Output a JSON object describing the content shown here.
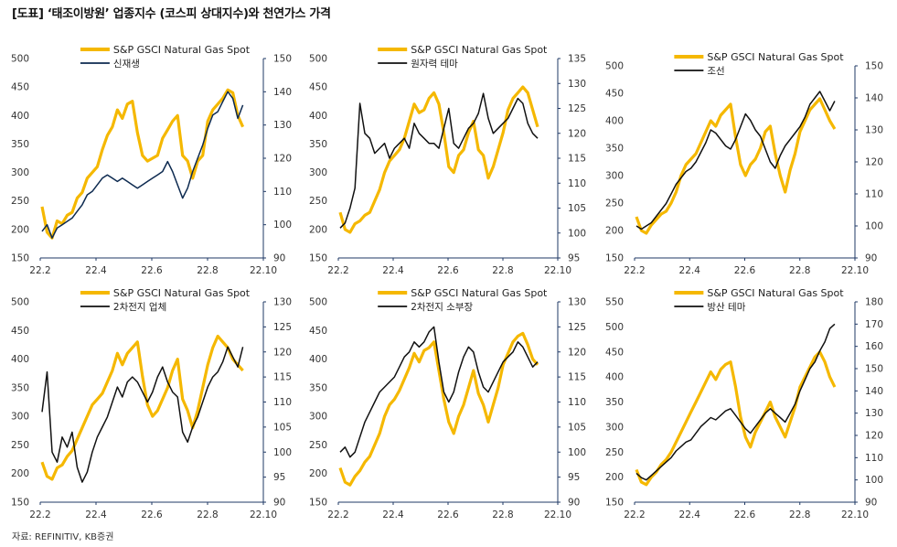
{
  "title": "[도표] ‘태조이방원’ 업종지수 (코스피 상대지수)와 천연가스 가격",
  "source": "자료: REFINITIV, KB증권",
  "colors": {
    "gas": "#F5B800",
    "theme": "#111111",
    "theme_alt": "#0D2A50",
    "axis": "#1F3864"
  },
  "x_ticks": [
    "22.2",
    "22.4",
    "22.6",
    "22.8",
    "22.10"
  ],
  "chart_data": [
    {
      "type": "line",
      "x_range": [
        "22.2",
        "22.10"
      ],
      "left_ticks": [
        "150",
        "200",
        "250",
        "300",
        "350",
        "400",
        "450",
        "500"
      ],
      "right_ticks": [
        "90",
        "100",
        "110",
        "120",
        "130",
        "140",
        "150"
      ],
      "ylim_left": [
        150,
        500
      ],
      "ylim_right": [
        90,
        150
      ],
      "legend_position": "top",
      "series": [
        {
          "name": "S&P GSCI Natural Gas Spot",
          "axis": "left",
          "values": [
            240,
            195,
            185,
            215,
            210,
            225,
            230,
            255,
            265,
            290,
            300,
            310,
            340,
            365,
            380,
            410,
            395,
            420,
            425,
            370,
            330,
            320,
            325,
            330,
            360,
            375,
            390,
            400,
            330,
            320,
            290,
            320,
            330,
            390,
            410,
            420,
            430,
            445,
            440,
            400,
            380
          ]
        },
        {
          "name": "신재생",
          "axis": "right",
          "values": [
            98,
            100,
            96,
            99,
            100,
            101,
            102,
            104,
            106,
            109,
            110,
            112,
            114,
            115,
            114,
            113,
            114,
            113,
            112,
            111,
            112,
            113,
            114,
            115,
            116,
            119,
            116,
            112,
            108,
            111,
            116,
            120,
            124,
            129,
            133,
            134,
            137,
            140,
            138,
            132,
            136
          ]
        }
      ]
    },
    {
      "type": "line",
      "x_range": [
        "22.2",
        "22.10"
      ],
      "left_ticks": [
        "150",
        "200",
        "250",
        "300",
        "350",
        "400",
        "450",
        "500"
      ],
      "right_ticks": [
        "95",
        "100",
        "105",
        "110",
        "115",
        "120",
        "125",
        "130",
        "135"
      ],
      "ylim_left": [
        150,
        500
      ],
      "ylim_right": [
        95,
        135
      ],
      "legend_position": "top",
      "series": [
        {
          "name": "S&P GSCI Natural Gas Spot",
          "axis": "left",
          "values": [
            230,
            200,
            195,
            210,
            215,
            225,
            230,
            250,
            270,
            300,
            320,
            330,
            340,
            360,
            390,
            420,
            405,
            410,
            430,
            440,
            420,
            370,
            310,
            300,
            330,
            340,
            370,
            390,
            340,
            330,
            290,
            310,
            340,
            370,
            410,
            430,
            440,
            450,
            440,
            410,
            380
          ]
        },
        {
          "name": "원자력 테마",
          "axis": "right",
          "values": [
            101,
            102,
            105,
            109,
            126,
            120,
            119,
            116,
            117,
            118,
            115,
            117,
            118,
            119,
            117,
            122,
            120,
            119,
            118,
            118,
            117,
            121,
            125,
            118,
            117,
            119,
            121,
            122,
            124,
            128,
            123,
            120,
            121,
            122,
            123,
            125,
            127,
            126,
            122,
            120,
            119
          ]
        }
      ]
    },
    {
      "type": "line",
      "x_range": [
        "22.2",
        "22.10"
      ],
      "left_ticks": [
        "150",
        "200",
        "250",
        "300",
        "350",
        "400",
        "450",
        "500"
      ],
      "right_ticks": [
        "90",
        "100",
        "110",
        "120",
        "130",
        "140",
        "150"
      ],
      "ylim_left": [
        150,
        500
      ],
      "ylim_right": [
        90,
        150
      ],
      "legend_position": "top",
      "series": [
        {
          "name": "S&P GSCI Natural Gas Spot",
          "axis": "left",
          "values": [
            225,
            200,
            195,
            210,
            220,
            230,
            235,
            250,
            270,
            300,
            320,
            330,
            340,
            360,
            380,
            400,
            390,
            410,
            420,
            430,
            370,
            320,
            300,
            320,
            330,
            350,
            380,
            390,
            340,
            300,
            270,
            310,
            340,
            380,
            400,
            420,
            430,
            440,
            420,
            400,
            385
          ]
        },
        {
          "name": "조선",
          "axis": "right",
          "values": [
            100,
            99,
            100,
            101,
            103,
            105,
            107,
            110,
            113,
            115,
            117,
            118,
            120,
            123,
            126,
            130,
            129,
            127,
            125,
            124,
            127,
            131,
            135,
            133,
            130,
            128,
            124,
            120,
            118,
            122,
            125,
            127,
            129,
            131,
            134,
            138,
            140,
            142,
            139,
            136,
            139
          ]
        }
      ]
    },
    {
      "type": "line",
      "x_range": [
        "22.2",
        "22.10"
      ],
      "left_ticks": [
        "150",
        "200",
        "250",
        "300",
        "350",
        "400",
        "450",
        "500"
      ],
      "right_ticks": [
        "90",
        "95",
        "100",
        "105",
        "110",
        "115",
        "120",
        "125",
        "130"
      ],
      "ylim_left": [
        150,
        500
      ],
      "ylim_right": [
        90,
        130
      ],
      "legend_position": "top",
      "series": [
        {
          "name": "S&P GSCI Natural Gas Spot",
          "axis": "left",
          "values": [
            220,
            195,
            190,
            210,
            215,
            230,
            240,
            260,
            280,
            300,
            320,
            330,
            340,
            360,
            380,
            410,
            390,
            410,
            420,
            430,
            370,
            320,
            300,
            310,
            330,
            350,
            380,
            400,
            330,
            310,
            280,
            310,
            350,
            390,
            420,
            440,
            430,
            420,
            400,
            390,
            380
          ]
        },
        {
          "name": "2차전지 업체",
          "axis": "right",
          "values": [
            108,
            116,
            100,
            98,
            103,
            101,
            104,
            97,
            94,
            96,
            100,
            103,
            105,
            107,
            110,
            113,
            111,
            114,
            115,
            114,
            112,
            110,
            112,
            115,
            117,
            114,
            112,
            111,
            104,
            102,
            105,
            107,
            110,
            113,
            115,
            116,
            118,
            121,
            119,
            117,
            121
          ]
        }
      ]
    },
    {
      "type": "line",
      "x_range": [
        "22.2",
        "22.10"
      ],
      "left_ticks": [
        "150",
        "200",
        "250",
        "300",
        "350",
        "400",
        "450",
        "500"
      ],
      "right_ticks": [
        "90",
        "95",
        "100",
        "105",
        "110",
        "115",
        "120",
        "125",
        "130"
      ],
      "ylim_left": [
        150,
        500
      ],
      "ylim_right": [
        90,
        130
      ],
      "legend_position": "top",
      "series": [
        {
          "name": "S&P GSCI Natural Gas Spot",
          "axis": "left",
          "values": [
            210,
            185,
            180,
            195,
            205,
            220,
            230,
            250,
            270,
            300,
            320,
            330,
            345,
            365,
            385,
            410,
            395,
            415,
            420,
            430,
            380,
            330,
            290,
            270,
            300,
            320,
            350,
            380,
            340,
            320,
            290,
            320,
            350,
            390,
            410,
            430,
            440,
            445,
            425,
            400,
            390
          ]
        },
        {
          "name": "2차전지 소부장",
          "axis": "right",
          "values": [
            100,
            101,
            99,
            100,
            103,
            106,
            108,
            110,
            112,
            113,
            114,
            115,
            117,
            119,
            120,
            122,
            121,
            122,
            124,
            125,
            118,
            112,
            110,
            112,
            116,
            119,
            121,
            120,
            116,
            113,
            112,
            114,
            116,
            118,
            119,
            120,
            122,
            121,
            119,
            117,
            118
          ]
        }
      ]
    },
    {
      "type": "line",
      "x_range": [
        "22.2",
        "22.10"
      ],
      "left_ticks": [
        "150",
        "200",
        "250",
        "300",
        "350",
        "400",
        "450",
        "500",
        "550"
      ],
      "right_ticks": [
        "90",
        "100",
        "110",
        "120",
        "130",
        "140",
        "150",
        "160",
        "170",
        "180"
      ],
      "ylim_left": [
        150,
        550
      ],
      "ylim_right": [
        90,
        180
      ],
      "legend_position": "top",
      "series": [
        {
          "name": "S&P GSCI Natural Gas Spot",
          "axis": "left",
          "values": [
            215,
            190,
            185,
            200,
            210,
            225,
            235,
            250,
            270,
            290,
            310,
            330,
            350,
            370,
            390,
            410,
            395,
            415,
            425,
            430,
            380,
            320,
            280,
            260,
            290,
            310,
            330,
            350,
            320,
            300,
            280,
            310,
            340,
            380,
            400,
            420,
            440,
            450,
            430,
            400,
            380
          ]
        },
        {
          "name": "방산 테마",
          "axis": "right",
          "values": [
            103,
            101,
            100,
            102,
            104,
            106,
            108,
            110,
            113,
            115,
            117,
            118,
            121,
            124,
            126,
            128,
            127,
            129,
            131,
            132,
            129,
            126,
            123,
            121,
            124,
            127,
            130,
            132,
            130,
            128,
            126,
            130,
            134,
            140,
            145,
            150,
            153,
            158,
            162,
            168,
            170
          ]
        }
      ]
    }
  ]
}
